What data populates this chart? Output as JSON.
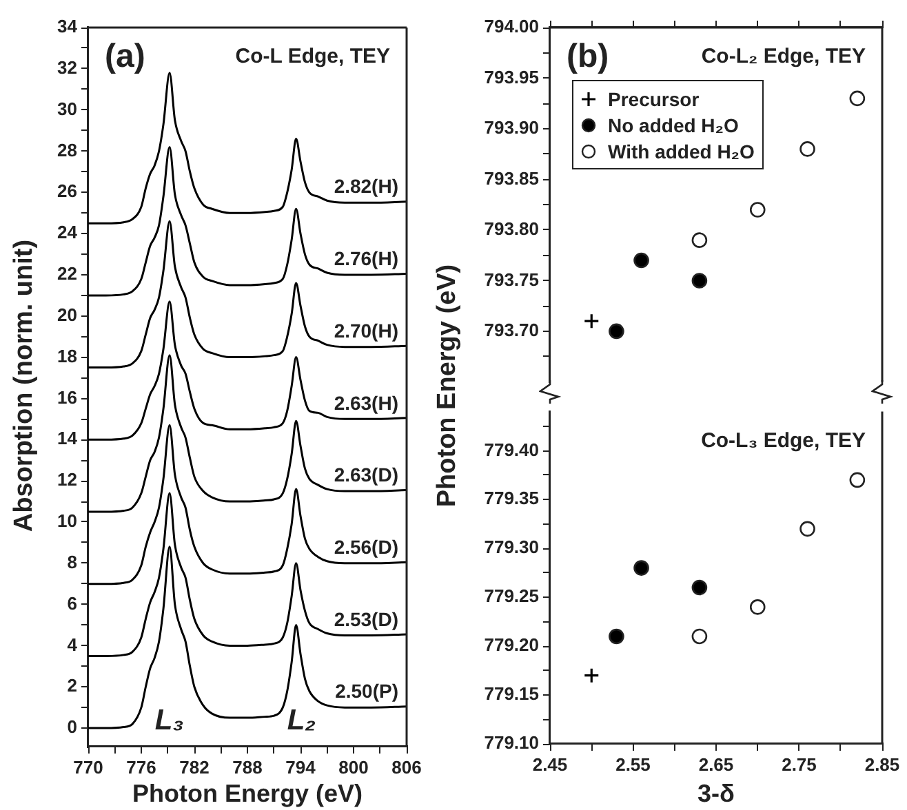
{
  "chart_data": [
    {
      "type": "line",
      "xlabel": "Photon Energy (eV)",
      "ylabel": "Absorption (norm. unit)",
      "annotations": [
        "(a)",
        "Co-L Edge, TEY",
        "L₃",
        "L₂"
      ],
      "x": [
        770,
        772,
        774,
        775,
        776,
        776.5,
        777,
        777.5,
        778,
        778.5,
        779.2,
        779.8,
        780.5,
        781,
        781.5,
        782,
        783,
        784,
        786,
        788,
        790,
        791,
        792,
        792.5,
        793,
        793.5,
        794,
        794.5,
        795,
        796,
        797,
        799,
        802,
        806
      ],
      "series": [
        {
          "name": "2.82(H)",
          "color": "#000000",
          "values": [
            24.5,
            24.5,
            24.55,
            24.7,
            25.3,
            26.2,
            26.9,
            27.3,
            28.0,
            29.3,
            31.8,
            29.5,
            28.5,
            28.0,
            27.0,
            26.2,
            25.4,
            25.2,
            25.0,
            25.0,
            25.05,
            25.1,
            25.3,
            26.0,
            27.1,
            28.6,
            27.5,
            26.5,
            26.0,
            25.8,
            25.6,
            25.5,
            25.5,
            25.55
          ]
        },
        {
          "name": "2.76(H)",
          "color": "#000000",
          "values": [
            21,
            21,
            21.05,
            21.2,
            21.8,
            22.6,
            23.4,
            23.8,
            24.4,
            25.8,
            28.2,
            25.9,
            24.9,
            24.4,
            23.5,
            22.6,
            21.9,
            21.7,
            21.5,
            21.5,
            21.55,
            21.6,
            21.8,
            22.5,
            23.7,
            25.2,
            24.0,
            23.0,
            22.5,
            22.3,
            22.1,
            22.0,
            22.0,
            22.05
          ]
        },
        {
          "name": "2.70(H)",
          "color": "#000000",
          "values": [
            17.5,
            17.5,
            17.55,
            17.7,
            18.3,
            19.1,
            19.9,
            20.3,
            20.9,
            22.2,
            24.6,
            22.4,
            21.4,
            20.9,
            19.9,
            19.1,
            18.4,
            18.2,
            18.0,
            18.0,
            18.05,
            18.1,
            18.3,
            19.0,
            20.1,
            21.6,
            20.5,
            19.5,
            19.0,
            18.8,
            18.6,
            18.5,
            18.5,
            18.55
          ]
        },
        {
          "name": "2.63(H)",
          "color": "#000000",
          "values": [
            14,
            14,
            14.05,
            14.2,
            14.8,
            15.5,
            16.2,
            16.6,
            17.2,
            18.4,
            20.7,
            18.6,
            17.6,
            17.2,
            16.3,
            15.5,
            14.8,
            14.7,
            14.5,
            14.5,
            14.55,
            14.6,
            14.8,
            15.4,
            16.6,
            18.0,
            16.9,
            15.9,
            15.4,
            15.3,
            15.1,
            15.0,
            15.0,
            15.05
          ]
        },
        {
          "name": "2.63(D)",
          "color": "#000000",
          "values": [
            10.5,
            10.5,
            10.55,
            10.7,
            11.4,
            12.2,
            13.0,
            13.4,
            14.1,
            15.5,
            18.1,
            15.7,
            14.6,
            14.1,
            13.1,
            12.2,
            11.5,
            11.2,
            11.0,
            11.0,
            11.05,
            11.1,
            11.4,
            12.1,
            13.3,
            14.9,
            13.7,
            12.6,
            12.1,
            11.8,
            11.6,
            11.5,
            11.5,
            11.55
          ]
        },
        {
          "name": "2.56(D)",
          "color": "#000000",
          "values": [
            7,
            7,
            7.05,
            7.2,
            7.9,
            8.8,
            9.5,
            10.0,
            10.7,
            12.1,
            14.7,
            12.3,
            11.2,
            10.7,
            9.6,
            8.8,
            8.0,
            7.7,
            7.5,
            7.5,
            7.55,
            7.6,
            7.9,
            8.7,
            9.9,
            11.6,
            10.3,
            9.2,
            8.7,
            8.3,
            8.1,
            8.0,
            8.0,
            8.05
          ]
        },
        {
          "name": "2.53(D)",
          "color": "#000000",
          "values": [
            3.5,
            3.5,
            3.55,
            3.7,
            4.4,
            5.3,
            6.1,
            6.6,
            7.3,
            8.7,
            11.4,
            8.9,
            7.8,
            7.3,
            6.2,
            5.3,
            4.5,
            4.2,
            4.0,
            4.0,
            4.05,
            4.1,
            4.4,
            5.1,
            6.4,
            8.0,
            6.7,
            5.7,
            5.1,
            4.8,
            4.6,
            4.5,
            4.5,
            4.55
          ]
        },
        {
          "name": "2.50(P)",
          "color": "#000000",
          "values": [
            0,
            0,
            0.05,
            0.2,
            1.0,
            2.0,
            2.9,
            3.4,
            4.2,
            5.8,
            8.8,
            6.0,
            4.8,
            4.2,
            3.0,
            2.0,
            1.1,
            0.7,
            0.5,
            0.5,
            0.55,
            0.6,
            1.0,
            1.8,
            3.2,
            5.0,
            3.6,
            2.4,
            1.8,
            1.3,
            1.1,
            1.0,
            1.0,
            1.05
          ]
        }
      ],
      "xlim": [
        770,
        806
      ],
      "ylim": [
        -0.9,
        34
      ],
      "xticks": [
        770,
        {
          "value": 773,
          "label": null
        },
        776,
        {
          "value": 779,
          "label": null
        },
        782,
        {
          "value": 785,
          "label": null
        },
        788,
        {
          "value": 791,
          "label": null
        },
        794,
        {
          "value": 797,
          "label": null
        },
        800,
        {
          "value": 803,
          "label": null
        },
        806
      ],
      "yticks": [
        0,
        {
          "value": 1,
          "label": null
        },
        2,
        {
          "value": 3,
          "label": null
        },
        4,
        {
          "value": 5,
          "label": null
        },
        6,
        {
          "value": 7,
          "label": null
        },
        8,
        {
          "value": 9,
          "label": null
        },
        10,
        {
          "value": 11,
          "label": null
        },
        12,
        {
          "value": 13,
          "label": null
        },
        14,
        {
          "value": 15,
          "label": null
        },
        16,
        {
          "value": 17,
          "label": null
        },
        18,
        {
          "value": 19,
          "label": null
        },
        20,
        {
          "value": 21,
          "label": null
        },
        22,
        {
          "value": 23,
          "label": null
        },
        24,
        {
          "value": 25,
          "label": null
        },
        26,
        {
          "value": 27,
          "label": null
        },
        28,
        {
          "value": 29,
          "label": null
        },
        30,
        {
          "value": 31,
          "label": null
        },
        32,
        {
          "value": 33,
          "label": null
        },
        34
      ],
      "marker": "none",
      "line_style": "solid"
    },
    {
      "type": "scatter",
      "annotations": [
        "(b)",
        "Co-L₂ Edge, TEY"
      ],
      "legend": "top left",
      "tick_labels": "y",
      "series": [
        {
          "name": "Precursor",
          "color": "#000000",
          "marker": "cross",
          "x": [
            2.5
          ],
          "values": [
            793.71
          ]
        },
        {
          "name": "No added H₂O",
          "color": "#000000",
          "marker": "circle",
          "x": [
            2.53,
            2.56,
            2.63
          ],
          "values": [
            793.7,
            793.77,
            793.75
          ]
        },
        {
          "name": "With added H₂O",
          "color": "#ffffff",
          "marker": "circle",
          "x": [
            2.63,
            2.7,
            2.76,
            2.82
          ],
          "values": [
            793.79,
            793.82,
            793.88,
            793.93
          ]
        }
      ],
      "xlim": [
        2.45,
        2.85
      ],
      "ylim": [
        793.65,
        794.0
      ],
      "xticks": [
        2.45,
        {
          "value": 2.5,
          "label": null
        },
        2.55,
        {
          "value": 2.6,
          "label": null
        },
        2.65,
        {
          "value": 2.7,
          "label": null
        },
        2.75,
        {
          "value": 2.8,
          "label": null
        },
        2.85
      ],
      "yticks": [
        {
          "value": 793.675,
          "label": null
        },
        {
          "value": 793.7,
          "label": "793.70"
        },
        {
          "value": 793.725,
          "label": null
        },
        {
          "value": 793.75,
          "label": "793.75"
        },
        {
          "value": 793.775,
          "label": null
        },
        {
          "value": 793.8,
          "label": "793.80"
        },
        {
          "value": 793.825,
          "label": null
        },
        {
          "value": 793.85,
          "label": "793.85"
        },
        {
          "value": 793.875,
          "label": null
        },
        {
          "value": 793.9,
          "label": "793.90"
        },
        {
          "value": 793.925,
          "label": null
        },
        {
          "value": 793.95,
          "label": "793.95"
        },
        {
          "value": 793.975,
          "label": null
        },
        {
          "value": 794.0,
          "label": "794.00"
        }
      ]
    },
    {
      "type": "scatter",
      "xlabel": "3-δ",
      "ylabel": "Photon Energy (eV)",
      "annotations": [
        "Co-L₃ Edge, TEY"
      ],
      "series": [
        {
          "color": "#000000",
          "marker": "cross",
          "x": [
            2.5
          ],
          "values": [
            779.17
          ]
        },
        {
          "color": "#000000",
          "marker": "circle",
          "x": [
            2.53,
            2.56,
            2.63
          ],
          "values": [
            779.21,
            779.28,
            779.26
          ]
        },
        {
          "color": "#ffffff",
          "marker": "circle",
          "x": [
            2.63,
            2.7,
            2.76,
            2.82
          ],
          "values": [
            779.21,
            779.24,
            779.32,
            779.37
          ]
        }
      ],
      "xlim": [
        2.45,
        2.85
      ],
      "ylim": [
        779.1,
        779.44
      ],
      "xticks": [
        2.45,
        {
          "value": 2.5,
          "label": null
        },
        2.55,
        {
          "value": 2.6,
          "label": null
        },
        2.65,
        {
          "value": 2.7,
          "label": null
        },
        2.75,
        {
          "value": 2.8,
          "label": null
        },
        2.85
      ],
      "yticks": [
        {
          "value": 779.1,
          "label": "779.10"
        },
        {
          "value": 779.125,
          "label": null
        },
        {
          "value": 779.15,
          "label": "779.15"
        },
        {
          "value": 779.175,
          "label": null
        },
        {
          "value": 779.2,
          "label": "779.20"
        },
        {
          "value": 779.225,
          "label": null
        },
        {
          "value": 779.25,
          "label": "779.25"
        },
        {
          "value": 779.275,
          "label": null
        },
        {
          "value": 779.3,
          "label": "779.30"
        },
        {
          "value": 779.325,
          "label": null
        },
        {
          "value": 779.35,
          "label": "779.35"
        },
        {
          "value": 779.375,
          "label": null
        },
        {
          "value": 779.4,
          "label": "779.40"
        },
        {
          "value": 779.425,
          "label": null
        }
      ]
    }
  ]
}
